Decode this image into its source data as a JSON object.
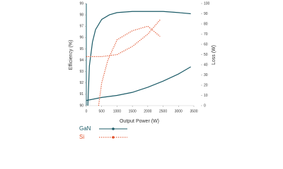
{
  "chart_data": {
    "type": "line",
    "xlabel": "Output Power (W)",
    "ylabel": "Efficiency (%)",
    "y2label": "Loss (W)",
    "xlim": [
      0,
      3500
    ],
    "xticks": [
      0,
      500,
      1000,
      1500,
      2000,
      2500,
      3000,
      3500
    ],
    "ylim": [
      90,
      99
    ],
    "yticks": [
      90,
      91,
      92,
      93,
      94,
      95,
      96,
      97,
      98,
      99
    ],
    "y2lim": [
      0,
      100
    ],
    "y2ticks": [
      0,
      10,
      20,
      30,
      40,
      50,
      60,
      70,
      80,
      90,
      100
    ],
    "legend": "bottom",
    "legend_entries": [
      {
        "name": "GaN",
        "color": "#1d5c68"
      },
      {
        "name": "Si",
        "color": "#e0502a"
      }
    ],
    "series": [
      {
        "name": "GaN efficiency",
        "color": "#1d5c68",
        "style": "solid",
        "axis": "y",
        "x": [
          50,
          100,
          200,
          300,
          500,
          750,
          1000,
          1500,
          2000,
          2500,
          3000,
          3400
        ],
        "values": [
          90,
          93.5,
          95.6,
          96.7,
          97.6,
          98.0,
          98.2,
          98.3,
          98.3,
          98.3,
          98.2,
          98.1
        ]
      },
      {
        "name": "GaN loss",
        "color": "#1d5c68",
        "style": "solid",
        "axis": "y2",
        "x": [
          0,
          500,
          1000,
          1500,
          2000,
          2500,
          3000,
          3400
        ],
        "values": [
          5,
          8,
          10,
          13,
          18,
          24,
          31,
          38
        ]
      },
      {
        "name": "Si efficiency",
        "color": "#e0502a",
        "style": "dotted",
        "axis": "y",
        "x": [
          400,
          500,
          700,
          1000,
          1500,
          2000,
          2400
        ],
        "values": [
          90,
          92,
          94,
          95.8,
          96.6,
          97.0,
          96.1
        ]
      },
      {
        "name": "Si loss",
        "color": "#e0502a",
        "style": "dotted",
        "axis": "y2",
        "x": [
          0,
          500,
          1000,
          1500,
          2000,
          2400
        ],
        "values": [
          48,
          48,
          50,
          58,
          70,
          84
        ]
      }
    ]
  }
}
